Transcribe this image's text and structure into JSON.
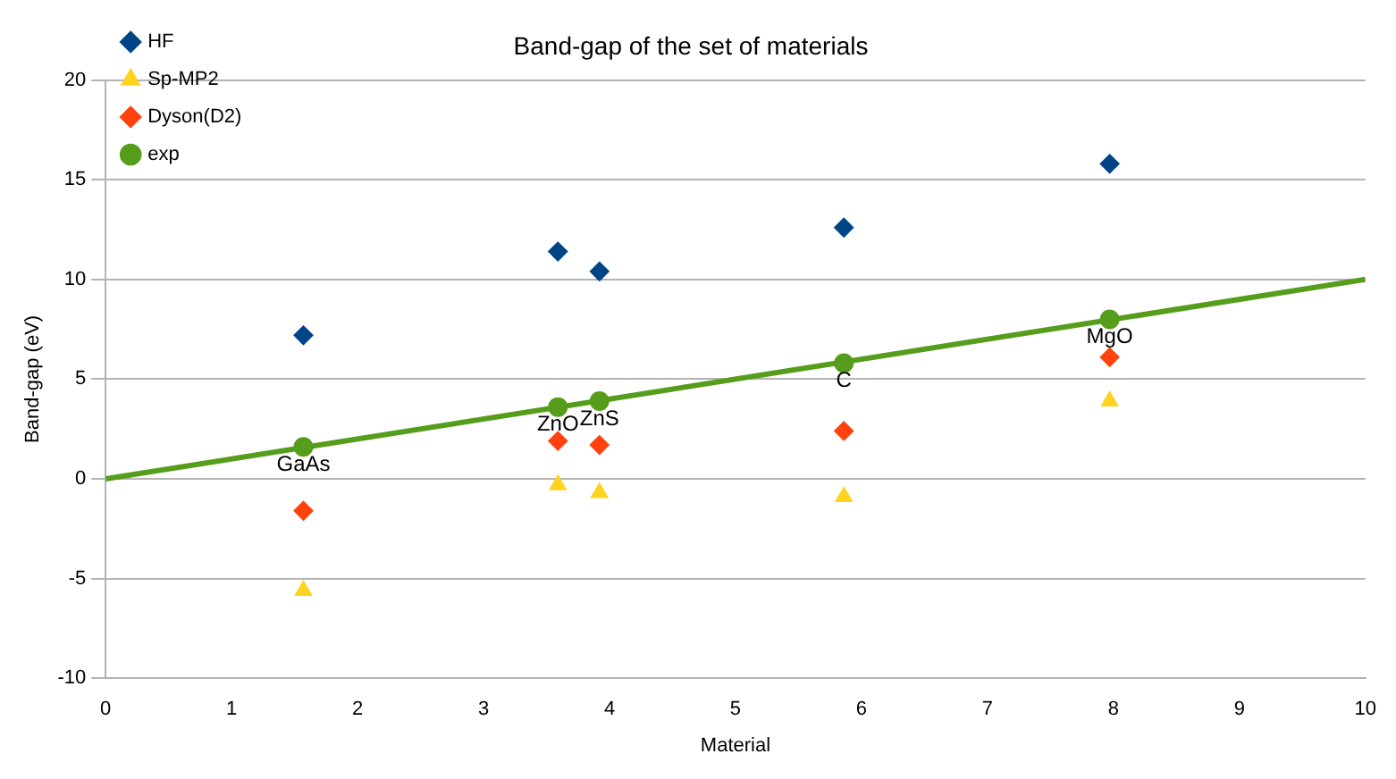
{
  "chart_data": {
    "type": "scatter",
    "title": "Band-gap of the set of materials",
    "xlabel": "Material",
    "ylabel": "Band-gap (eV)",
    "xlim": [
      0,
      10
    ],
    "xticks": [
      0,
      1,
      2,
      3,
      4,
      5,
      6,
      7,
      8,
      9,
      10
    ],
    "ylim": [
      -10,
      20
    ],
    "yticks": [
      -10,
      -5,
      0,
      5,
      10,
      15,
      20
    ],
    "grid": "y",
    "legend": "top left",
    "series": [
      {
        "name": "HF",
        "color": "#004586",
        "marker": "diamond",
        "x": [
          1.57,
          3.59,
          3.92,
          5.86,
          7.97
        ],
        "values": [
          7.2,
          11.4,
          10.4,
          12.6,
          15.8
        ]
      },
      {
        "name": "Sp-MP2",
        "color": "#ffd320",
        "marker": "triangle",
        "x": [
          1.57,
          3.59,
          3.92,
          5.86,
          7.97
        ],
        "values": [
          -5.6,
          -0.3,
          -0.7,
          -0.9,
          3.9
        ]
      },
      {
        "name": "Dyson(D2)",
        "color": "#ff420e",
        "marker": "diamond",
        "x": [
          1.57,
          3.59,
          3.92,
          5.86,
          7.97
        ],
        "values": [
          -1.6,
          1.9,
          1.7,
          2.4,
          6.1
        ]
      },
      {
        "name": "exp",
        "color": "#579d1c",
        "marker": "circle",
        "x": [
          1.57,
          3.59,
          3.92,
          5.86,
          7.97
        ],
        "values": [
          1.6,
          3.6,
          3.9,
          5.8,
          8.0
        ]
      },
      {
        "type": "line",
        "color": "#579d1c",
        "marker": "none",
        "x": [
          0,
          10
        ],
        "values": [
          0,
          10
        ]
      }
    ],
    "annotations": [
      {
        "text": "GaAs",
        "x": 1.57,
        "y": 1.6
      },
      {
        "text": "ZnO",
        "x": 3.59,
        "y": 3.6
      },
      {
        "text": "ZnS",
        "x": 3.92,
        "y": 3.9
      },
      {
        "text": "C",
        "x": 5.86,
        "y": 5.8
      },
      {
        "text": "MgO",
        "x": 7.97,
        "y": 8.0
      }
    ]
  }
}
